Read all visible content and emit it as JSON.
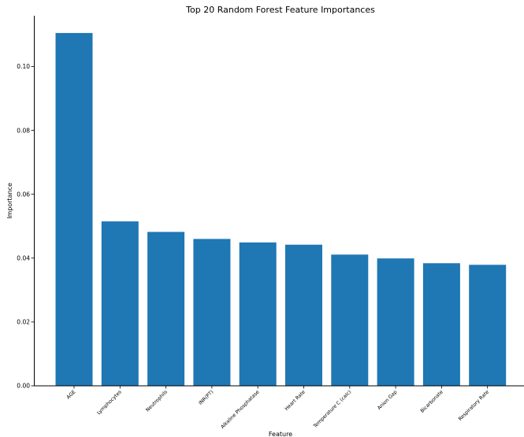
{
  "chart_data": {
    "type": "bar",
    "title": "Top 20 Random Forest Feature Importances",
    "xlabel": "Feature",
    "ylabel": "Importance",
    "categories": [
      "AGE",
      "Lymphocytes",
      "Neutrophils",
      "INR(PT)",
      "Alkaline Phosphatase",
      "Heart Rate",
      "Temperature C (calc)",
      "Anion Gap",
      "Bicarbonate",
      "Respiratory Rate"
    ],
    "values": [
      0.1105,
      0.0515,
      0.0482,
      0.046,
      0.0449,
      0.0442,
      0.0411,
      0.0399,
      0.0384,
      0.0379
    ],
    "yticks": [
      "0.00",
      "0.02",
      "0.04",
      "0.06",
      "0.08",
      "0.10"
    ],
    "ylim": [
      0,
      0.1159
    ],
    "bar_color": "#1f77b4",
    "grid": false,
    "legend": "none"
  }
}
